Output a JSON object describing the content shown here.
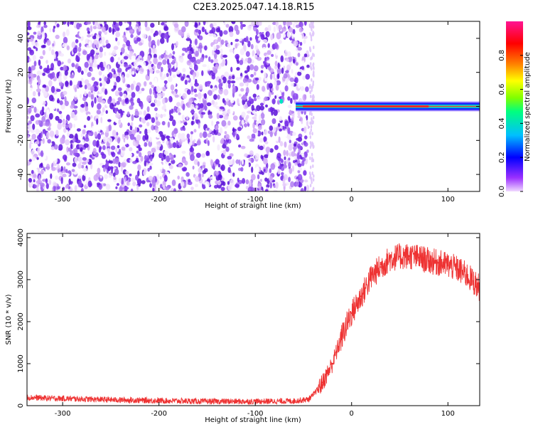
{
  "title": "C2E3.2025.047.14.18.R15",
  "chart_data": [
    {
      "type": "heatmap",
      "xlabel": "Height of straight line (km)",
      "ylabel": "Frequency (Hz)",
      "xlim": [
        -337,
        133
      ],
      "ylim": [
        -50,
        50
      ],
      "xticks": [
        -300,
        -200,
        -100,
        0,
        100
      ],
      "yticks": [
        -40,
        -20,
        0,
        20,
        40
      ],
      "noise_region_x": [
        -337,
        -45
      ],
      "signal_band": {
        "x_start": -58,
        "x_end": 133,
        "frequency_hz": 0
      },
      "colorbar": {
        "label": "Normalized spectral amplitude",
        "range": [
          0,
          1
        ],
        "ticks": [
          0.0,
          0.2,
          0.4,
          0.6,
          0.8
        ],
        "colors": [
          "#f0d9ff",
          "#9b30ff",
          "#0000ff",
          "#00bfff",
          "#00ff7f",
          "#7fff00",
          "#ffff00",
          "#ff7f00",
          "#ff0000",
          "#ff1493"
        ]
      }
    },
    {
      "type": "line",
      "xlabel": "Height of straight line (km)",
      "ylabel": "SNR (10 * v/v)",
      "xlim": [
        -337,
        133
      ],
      "ylim": [
        0,
        4100
      ],
      "xticks": [
        -300,
        -200,
        -100,
        0,
        100
      ],
      "yticks": [
        0,
        1000,
        2000,
        3000,
        4000
      ],
      "color": "#ee3333",
      "x": [
        -337,
        -320,
        -300,
        -250,
        -200,
        -150,
        -100,
        -60,
        -45,
        -40,
        -30,
        -20,
        -10,
        0,
        10,
        20,
        30,
        40,
        50,
        60,
        70,
        80,
        90,
        100,
        110,
        120,
        133
      ],
      "y": [
        200,
        180,
        170,
        140,
        120,
        100,
        100,
        110,
        150,
        250,
        550,
        1000,
        1650,
        2200,
        2600,
        3050,
        3300,
        3500,
        3550,
        3560,
        3520,
        3450,
        3400,
        3350,
        3250,
        3100,
        2800
      ]
    }
  ]
}
